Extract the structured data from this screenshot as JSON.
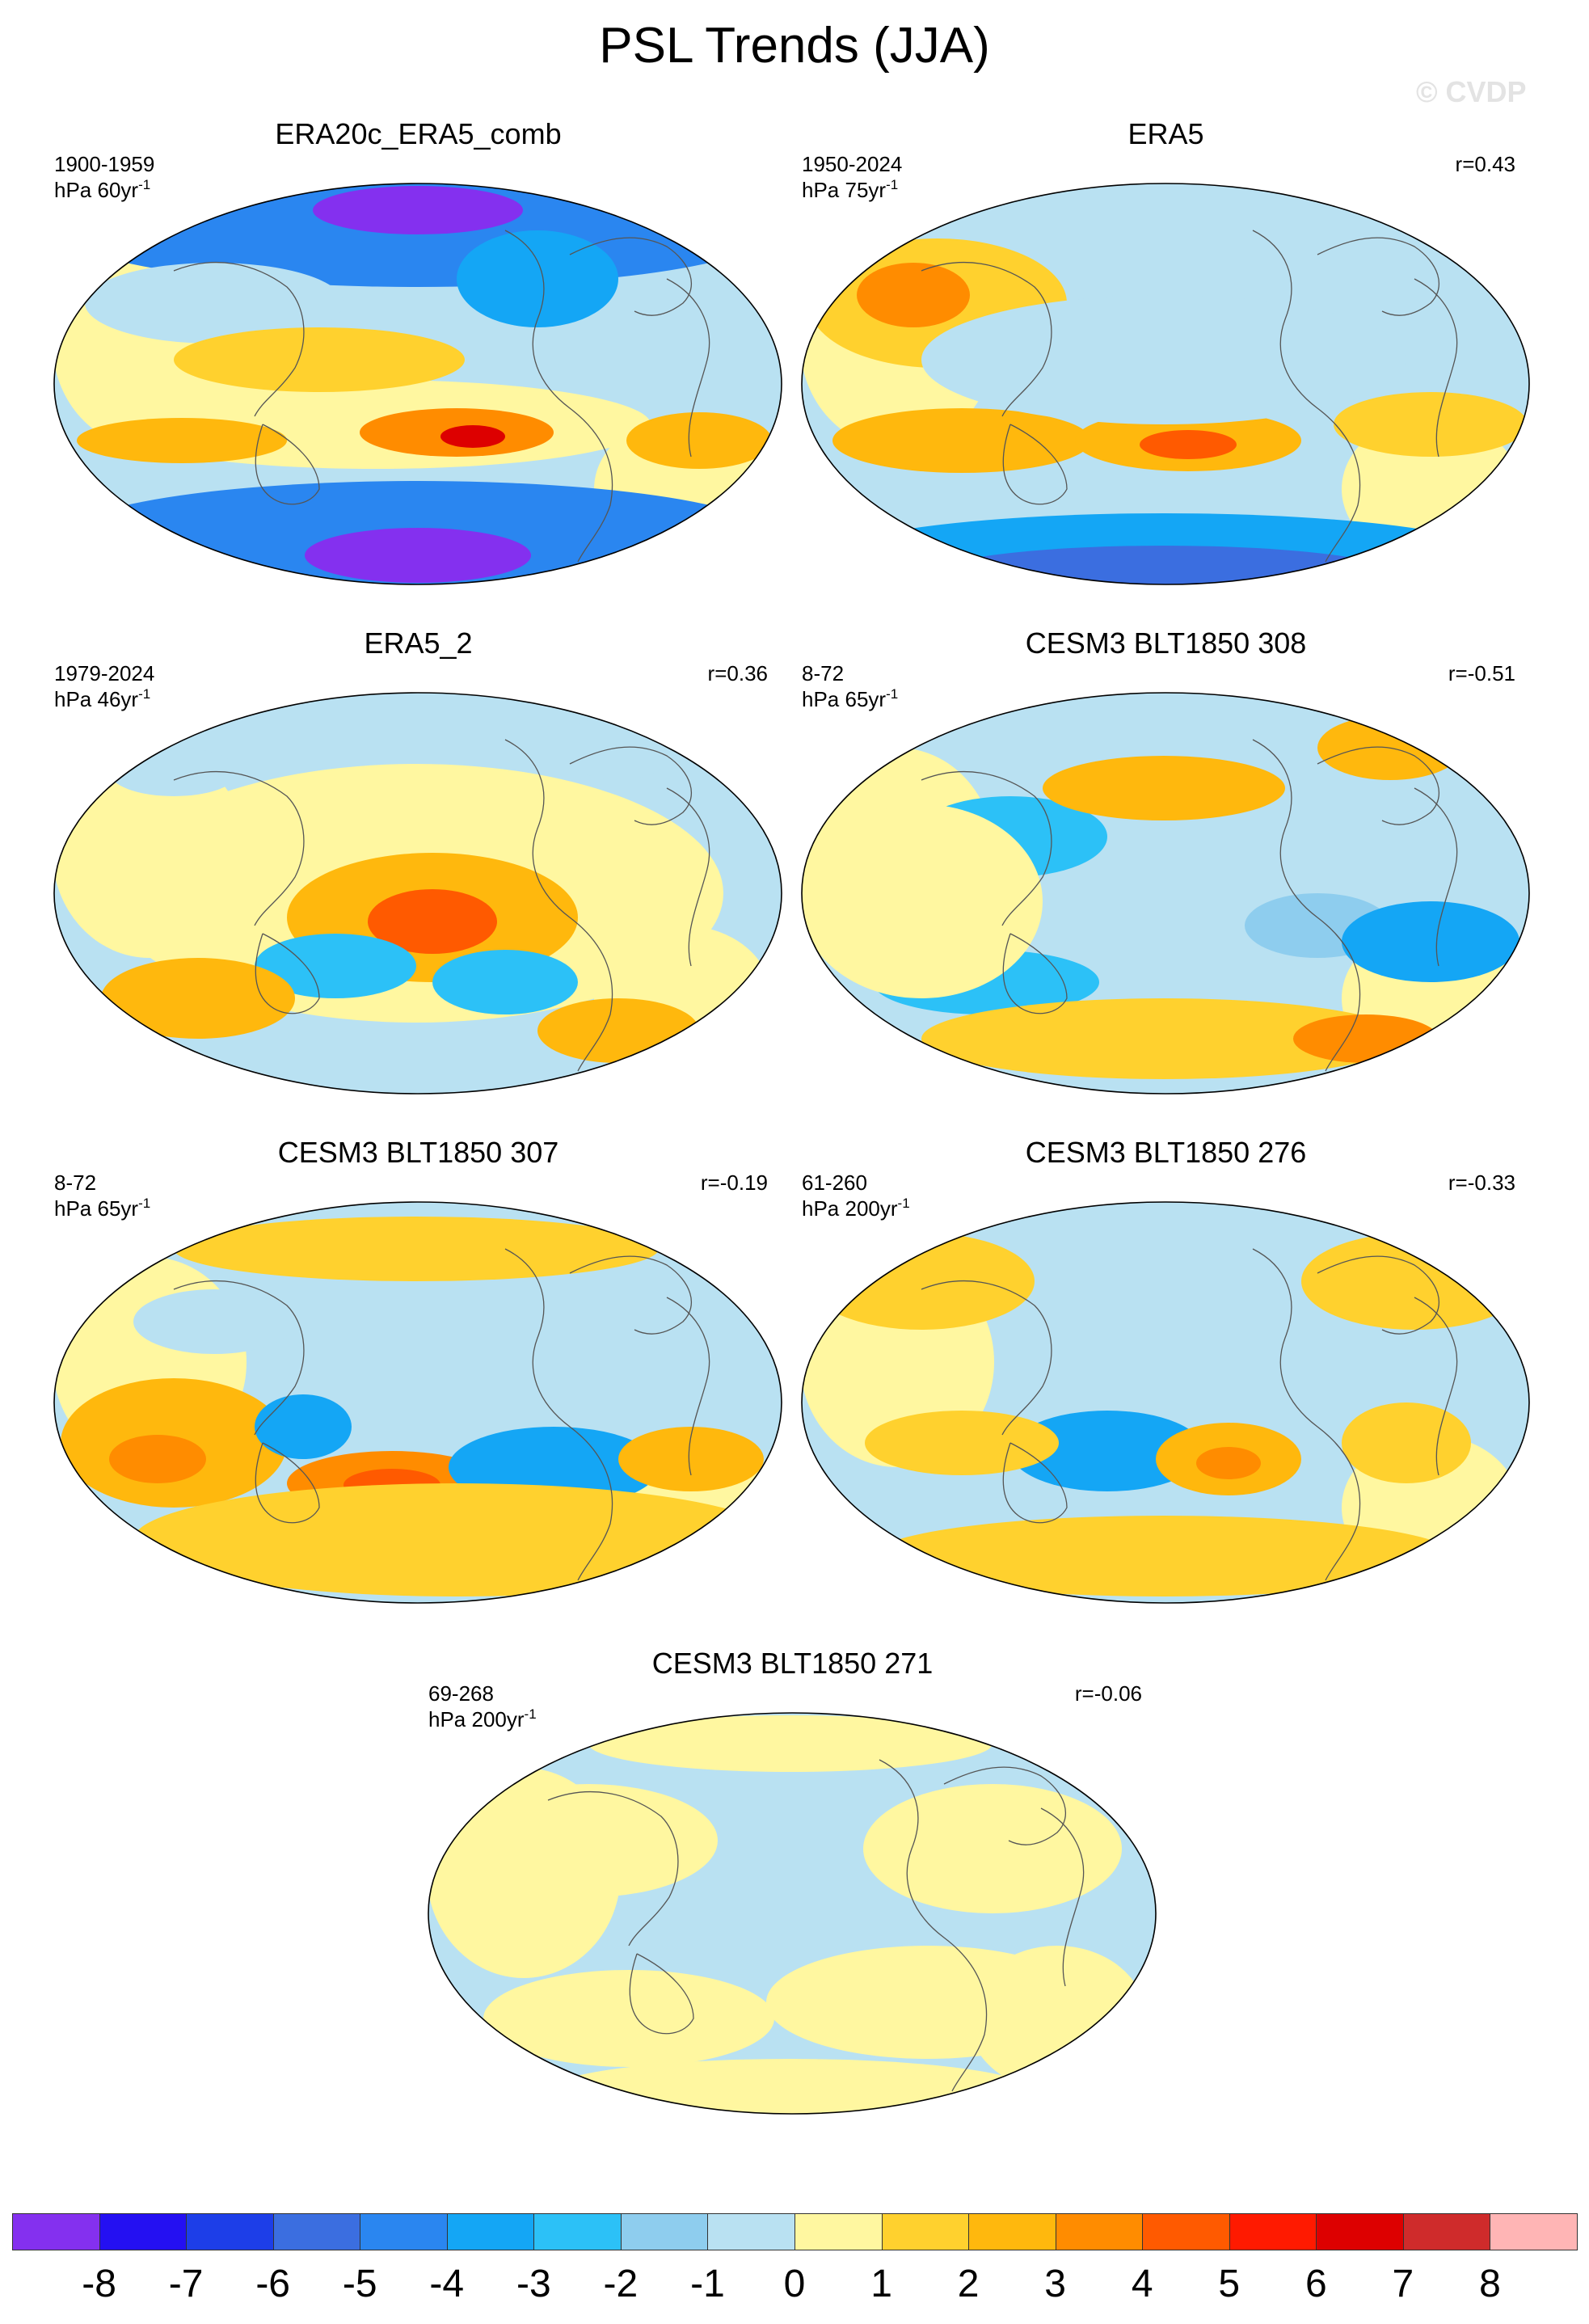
{
  "title": "PSL Trends (JJA)",
  "watermark": "© CVDP",
  "panels": [
    {
      "title": "ERA20c_ERA5_comb",
      "period": "1900-1959",
      "units_prefix": "hPa 60yr",
      "units_exp": "-1",
      "corr": "",
      "colors": {
        "north": "#3c5fe0",
        "arctic_core": "#7a2de6",
        "south": "#3c5fe0",
        "antarctic_core": "#7a2de6"
      }
    },
    {
      "title": "ERA5",
      "period": "1950-2024",
      "units_prefix": "hPa 75yr",
      "units_exp": "-1",
      "corr": "r=0.43"
    },
    {
      "title": "ERA5_2",
      "period": "1979-2024",
      "units_prefix": "hPa 46yr",
      "units_exp": "-1",
      "corr": "r=0.36"
    },
    {
      "title": "CESM3 BLT1850 308",
      "period": "8-72",
      "units_prefix": "hPa 65yr",
      "units_exp": "-1",
      "corr": "r=-0.51"
    },
    {
      "title": "CESM3 BLT1850 307",
      "period": "8-72",
      "units_prefix": "hPa 65yr",
      "units_exp": "-1",
      "corr": "r=-0.19"
    },
    {
      "title": "CESM3 BLT1850 276",
      "period": "61-260",
      "units_prefix": "hPa 200yr",
      "units_exp": "-1",
      "corr": "r=-0.33"
    },
    {
      "title": "CESM3 BLT1850 271",
      "period": "69-268",
      "units_prefix": "hPa 200yr",
      "units_exp": "-1",
      "corr": "r=-0.06"
    }
  ],
  "colorbar": {
    "labels": [
      "-8",
      "-7",
      "-6",
      "-5",
      "-4",
      "-3",
      "-2",
      "-1",
      "0",
      "1",
      "2",
      "3",
      "4",
      "5",
      "6",
      "7",
      "8"
    ],
    "colors": [
      "#8430ef",
      "#2410f2",
      "#1d3ee8",
      "#3b6ee0",
      "#2a86f0",
      "#14a6f5",
      "#2cc1f7",
      "#8ecdee",
      "#b9e1f2",
      "#fff7a0",
      "#ffd12e",
      "#ffb80d",
      "#ff8c00",
      "#ff5a00",
      "#ff1a00",
      "#dd0000",
      "#cf2b2b",
      "#ffb5b5"
    ]
  },
  "palette": {
    "land_line": "#555555",
    "background": "#ffffff"
  }
}
